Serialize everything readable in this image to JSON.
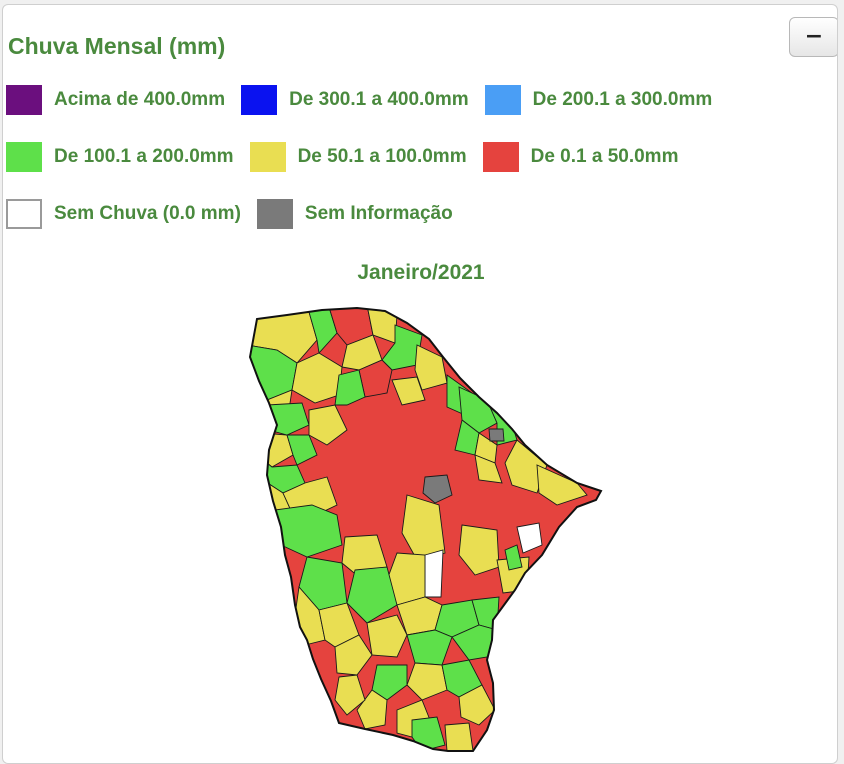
{
  "title": "Chuva Mensal (mm)",
  "collapse_button": "−",
  "legend": [
    {
      "label": "Acima de 400.0mm",
      "color": "#6b0f7e"
    },
    {
      "label": "De 300.1 a 400.0mm",
      "color": "#0a12f0"
    },
    {
      "label": "De 200.1 a 300.0mm",
      "color": "#4a9ef5"
    },
    {
      "label": "De 100.1 a 200.0mm",
      "color": "#5ee04a"
    },
    {
      "label": "De 50.1 a 100.0mm",
      "color": "#e9de52"
    },
    {
      "label": "De 0.1 a 50.0mm",
      "color": "#e5433e"
    },
    {
      "label": "Sem Chuva (0.0 mm)",
      "color": "#ffffff"
    },
    {
      "label": "Sem Informação",
      "color": "#7a7a7a"
    }
  ],
  "month": "Janeiro/2021",
  "map": {
    "region_colors": {
      "above_400": "#6b0f7e",
      "from_300_to_400": "#0a12f0",
      "from_200_to_300": "#4a9ef5",
      "from_100_to_200": "#5ee04a",
      "from_50_to_100": "#e9de52",
      "from_0_to_50": "#e5433e",
      "no_rain": "#ffffff",
      "no_information": "#7a7a7a"
    }
  }
}
